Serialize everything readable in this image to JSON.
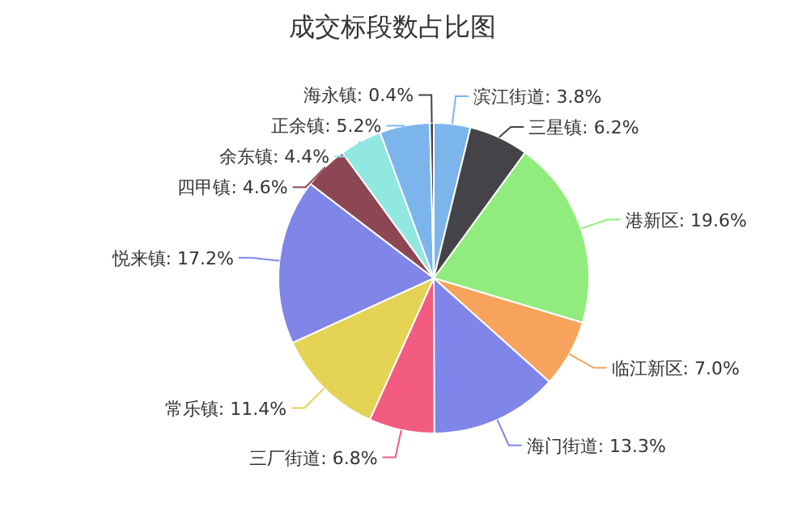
{
  "chart_data": {
    "type": "pie",
    "title": "成交标段数占比图",
    "categories": [
      "滨江街道",
      "三星镇",
      "港新区",
      "临江新区",
      "海门街道",
      "三厂街道",
      "常乐镇",
      "悦来镇",
      "四甲镇",
      "余东镇",
      "正余镇",
      "海永镇"
    ],
    "values": [
      3.8,
      6.2,
      19.6,
      7.0,
      13.3,
      6.8,
      11.4,
      17.2,
      4.6,
      4.4,
      5.2,
      0.4
    ],
    "value_labels": [
      "3.8%",
      "6.2%",
      "19.6%",
      "7.0%",
      "13.3%",
      "6.8%",
      "11.4%",
      "17.2%",
      "4.6%",
      "4.4%",
      "5.2%",
      "0.4%"
    ],
    "colors": [
      "#7cb5ec",
      "#434348",
      "#90ed7d",
      "#f7a35c",
      "#8085e9",
      "#f15c80",
      "#e4d354",
      "#8085e8",
      "#8d4653",
      "#91e8e1",
      "#7cb5ec",
      "#434348"
    ]
  }
}
